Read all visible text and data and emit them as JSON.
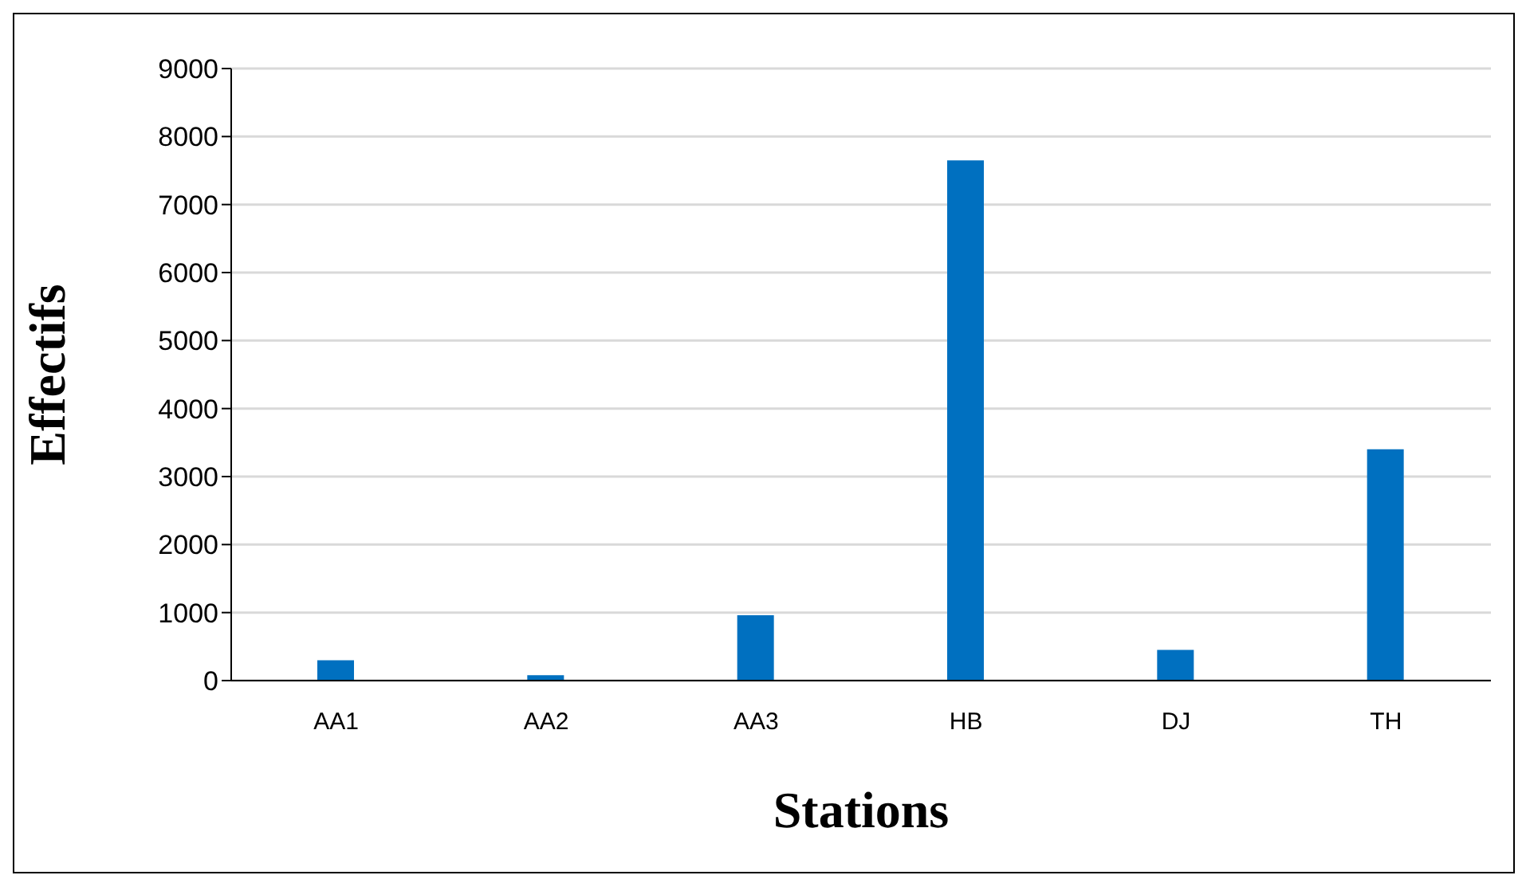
{
  "chart_data": {
    "type": "bar",
    "xlabel": "Stations",
    "ylabel": "Effectifs",
    "categories": [
      "AA1",
      "AA2",
      "AA3",
      "HB",
      "DJ",
      "TH"
    ],
    "values": [
      300,
      80,
      960,
      7650,
      450,
      3400
    ],
    "color": "#0070c0",
    "ylim": [
      0,
      9000
    ],
    "yticks": [
      0,
      1000,
      2000,
      3000,
      4000,
      5000,
      6000,
      7000,
      8000,
      9000
    ],
    "grid": "y"
  }
}
